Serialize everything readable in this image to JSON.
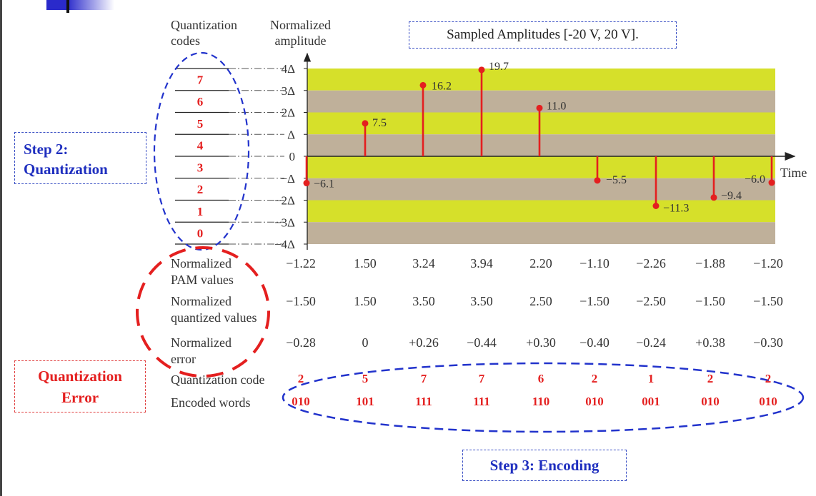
{
  "colors": {
    "band_yellow": "#d6e02a",
    "band_tan": "#bfb09a",
    "stem": "#e41f1f",
    "blue_dash": "#2233cc",
    "red_dash": "#e41f1f"
  },
  "headers": {
    "codes_line1": "Quantization",
    "codes_line2": "codes",
    "amp_line1": "Normalized",
    "amp_line2": "amplitude"
  },
  "range_box": "Sampled Amplitudes [-20 V, 20 V].",
  "step2": {
    "line1": "Step 2:",
    "line2": "Quantization"
  },
  "quant_error": {
    "line1": "Quantization",
    "line2": "Error"
  },
  "step3": "Step 3: Encoding",
  "codes": [
    "7",
    "6",
    "5",
    "4",
    "3",
    "2",
    "1",
    "0"
  ],
  "y_ticks": [
    "4Δ",
    "3Δ",
    "2Δ",
    "Δ",
    "0",
    "−Δ",
    "−2Δ",
    "−3Δ",
    "−4Δ"
  ],
  "time_label": "Time",
  "chart_data": {
    "type": "stem",
    "xlabel": "Time",
    "ylabel": "Normalized amplitude",
    "ylim": [
      -4,
      4
    ],
    "sample_labels": [
      "−6.1",
      "7.5",
      "16.2",
      "19.7",
      "11.0",
      "−5.5",
      "−11.3",
      "−9.4",
      "−6.0"
    ],
    "values": [
      -1.22,
      1.5,
      3.24,
      3.94,
      2.2,
      -1.1,
      -2.26,
      -1.88,
      -1.2
    ]
  },
  "table": {
    "rows": [
      {
        "label1": "Normalized",
        "label2": "PAM values",
        "values": [
          "−1.22",
          "1.50",
          "3.24",
          "3.94",
          "2.20",
          "−1.10",
          "−2.26",
          "−1.88",
          "−1.20"
        ]
      },
      {
        "label1": "Normalized",
        "label2": "quantized values",
        "values": [
          "−1.50",
          "1.50",
          "3.50",
          "3.50",
          "2.50",
          "−1.50",
          "−2.50",
          "−1.50",
          "−1.50"
        ]
      },
      {
        "label1": "Normalized",
        "label2": "error",
        "values": [
          "−0.28",
          "0",
          "+0.26",
          "−0.44",
          "+0.30",
          "−0.40",
          "−0.24",
          "+0.38",
          "−0.30"
        ]
      },
      {
        "label1": "Quantization code",
        "label2": "",
        "values": [
          "2",
          "5",
          "7",
          "7",
          "6",
          "2",
          "1",
          "2",
          "2"
        ]
      },
      {
        "label1": "Encoded words",
        "label2": "",
        "values": [
          "010",
          "101",
          "111",
          "111",
          "110",
          "010",
          "001",
          "010",
          "010"
        ]
      }
    ]
  }
}
